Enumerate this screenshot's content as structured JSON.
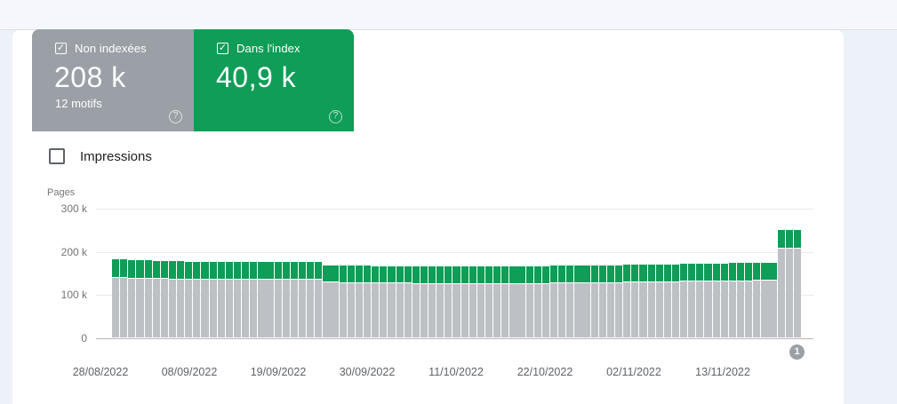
{
  "icons": {
    "check": "✓",
    "help": "?"
  },
  "cards": {
    "non_indexed": {
      "label": "Non indexées",
      "value": "208 k",
      "sub": "12 motifs",
      "checked": true,
      "color": "#9aa0a6"
    },
    "indexed": {
      "label": "Dans l'index",
      "value": "40,9 k",
      "checked": true,
      "color": "#0f9d58"
    }
  },
  "impressions_toggle": {
    "label": "Impressions",
    "checked": false
  },
  "chart_data": {
    "type": "bar",
    "stacked": true,
    "ylabel": "Pages",
    "values_unit": "thousands",
    "ylim_thousands": [
      0,
      300
    ],
    "y_tick_labels": [
      "300 k",
      "200 k",
      "100 k",
      "0"
    ],
    "grid": true,
    "x_tick_labels": [
      "28/08/2022",
      "08/09/2022",
      "19/09/2022",
      "30/09/2022",
      "11/10/2022",
      "22/10/2022",
      "02/11/2022",
      "13/11/2022"
    ],
    "year": "2022",
    "x_dates": [
      "30/08",
      "31/08",
      "01/09",
      "02/09",
      "03/09",
      "04/09",
      "05/09",
      "06/09",
      "07/09",
      "08/09",
      "09/09",
      "10/09",
      "11/09",
      "12/09",
      "13/09",
      "14/09",
      "15/09",
      "16/09",
      "17/09",
      "18/09",
      "19/09",
      "20/09",
      "21/09",
      "22/09",
      "23/09",
      "24/09",
      "25/09",
      "26/09",
      "27/09",
      "28/09",
      "29/09",
      "30/09",
      "01/10",
      "02/10",
      "03/10",
      "04/10",
      "05/10",
      "06/10",
      "07/10",
      "08/10",
      "09/10",
      "10/10",
      "11/10",
      "12/10",
      "13/10",
      "14/10",
      "15/10",
      "16/10",
      "17/10",
      "18/10",
      "19/10",
      "20/10",
      "21/10",
      "22/10",
      "23/10",
      "24/10",
      "25/10",
      "26/10",
      "27/10",
      "28/10",
      "29/10",
      "30/10",
      "31/10",
      "01/11",
      "02/11",
      "03/11",
      "04/11",
      "05/11",
      "06/11",
      "07/11",
      "08/11",
      "09/11",
      "10/11",
      "11/11",
      "12/11",
      "13/11",
      "14/11",
      "15/11",
      "16/11",
      "17/11",
      "18/11",
      "19/11",
      "20/11",
      "21/11",
      "22/11"
    ],
    "series": [
      {
        "name": "Non indexées",
        "color": "#bdc1c6",
        "values": [
          139,
          139,
          138,
          138,
          138,
          137,
          137,
          136,
          136,
          135,
          135,
          135,
          135,
          135,
          135,
          135,
          135,
          135,
          135,
          135,
          135,
          135,
          135,
          135,
          135,
          135,
          129,
          129,
          128,
          128,
          128,
          128,
          127,
          127,
          127,
          127,
          127,
          126,
          126,
          126,
          126,
          126,
          126,
          126,
          126,
          126,
          126,
          126,
          126,
          126,
          126,
          126,
          126,
          126,
          127,
          127,
          127,
          127,
          127,
          127,
          127,
          127,
          127,
          129,
          129,
          129,
          130,
          130,
          130,
          130,
          131,
          131,
          131,
          131,
          131,
          131,
          132,
          132,
          132,
          133,
          133,
          133,
          208,
          208,
          208
        ]
      },
      {
        "name": "Dans l'index",
        "color": "#0f9d58",
        "values": [
          41,
          41,
          41,
          41,
          41,
          40,
          40,
          40,
          40,
          39,
          39,
          39,
          39,
          39,
          39,
          39,
          39,
          39,
          39,
          39,
          39,
          39,
          39,
          39,
          39,
          39,
          38,
          38,
          38,
          38,
          38,
          38,
          38,
          38,
          38,
          38,
          38,
          38,
          38,
          38,
          38,
          38,
          38,
          38,
          38,
          38,
          38,
          38,
          38,
          38,
          38,
          38,
          38,
          38,
          39,
          39,
          39,
          39,
          39,
          39,
          39,
          39,
          39,
          39,
          39,
          39,
          39,
          39,
          39,
          39,
          39,
          39,
          39,
          39,
          39,
          39,
          40,
          40,
          40,
          40,
          40,
          40,
          41,
          41,
          41
        ]
      }
    ],
    "annotation": {
      "label": "1"
    }
  }
}
